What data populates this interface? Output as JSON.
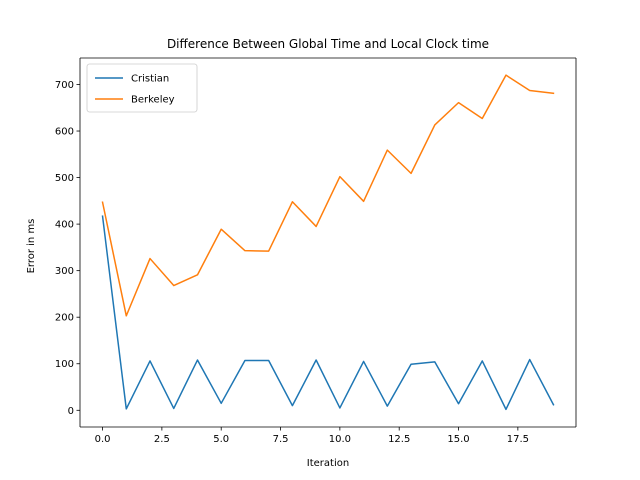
{
  "chart_data": {
    "type": "line",
    "title": "Difference Between Global Time and Local Clock time",
    "xlabel": "Iteration",
    "ylabel": "Error in ms",
    "x": [
      0,
      1,
      2,
      3,
      4,
      5,
      6,
      7,
      8,
      9,
      10,
      11,
      12,
      13,
      14,
      15,
      16,
      17,
      18,
      19
    ],
    "series": [
      {
        "name": "Cristian",
        "color": "#1f77b4",
        "values": [
          417,
          3,
          106,
          4,
          108,
          15,
          107,
          107,
          10,
          108,
          5,
          105,
          9,
          99,
          104,
          14,
          106,
          2,
          109,
          12
        ]
      },
      {
        "name": "Berkeley",
        "color": "#ff7f0e",
        "values": [
          447,
          203,
          326,
          268,
          291,
          389,
          343,
          342,
          448,
          395,
          502,
          449,
          559,
          509,
          613,
          661,
          627,
          720,
          687,
          681
        ]
      }
    ],
    "xlim": [
      -0.95,
      19.95
    ],
    "ylim": [
      -35.9,
      756.9
    ],
    "x_ticks": [
      0,
      2.5,
      5,
      7.5,
      10,
      12.5,
      15,
      17.5
    ],
    "x_tick_labels": [
      "0.0",
      "2.5",
      "5.0",
      "7.5",
      "10.0",
      "12.5",
      "15.0",
      "17.5"
    ],
    "y_ticks": [
      0,
      100,
      200,
      300,
      400,
      500,
      600,
      700
    ],
    "y_tick_labels": [
      "0",
      "100",
      "200",
      "300",
      "400",
      "500",
      "600",
      "700"
    ],
    "legend_position": "top-left",
    "grid": false
  }
}
